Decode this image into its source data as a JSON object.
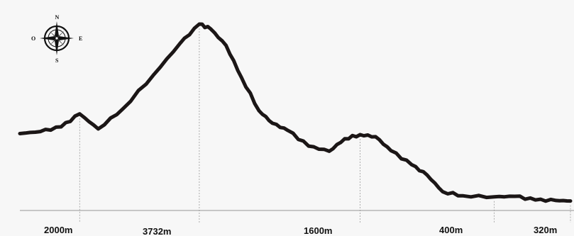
{
  "chart_data": {
    "type": "area",
    "title": "",
    "xlabel": "",
    "ylabel": "",
    "grid": false,
    "legend": "none",
    "line_color": "#1b1616",
    "guide_color": "#9a9a9a",
    "baseline_color": "#b5b5b5",
    "elevation_labels": [
      "2000m",
      "3732m",
      "1600m",
      "400m",
      "320m"
    ],
    "series": [
      {
        "values": [
          [
            0.0,
            1620
          ],
          [
            2.0,
            1660
          ],
          [
            4.0,
            1750
          ],
          [
            5.8,
            2000
          ],
          [
            7.6,
            1710
          ],
          [
            10.0,
            2100
          ],
          [
            13.0,
            2760
          ],
          [
            15.5,
            3350
          ],
          [
            17.4,
            3732
          ],
          [
            18.5,
            3640
          ],
          [
            20.0,
            3320
          ],
          [
            21.5,
            2700
          ],
          [
            23.2,
            2060
          ],
          [
            24.5,
            1820
          ],
          [
            26.0,
            1680
          ],
          [
            28.0,
            1380
          ],
          [
            30.0,
            1280
          ],
          [
            31.5,
            1520
          ],
          [
            33.0,
            1600
          ],
          [
            34.5,
            1560
          ],
          [
            36.0,
            1290
          ],
          [
            38.0,
            1020
          ],
          [
            39.5,
            820
          ],
          [
            41.0,
            500
          ],
          [
            43.0,
            420
          ],
          [
            46.0,
            400
          ],
          [
            48.0,
            410
          ],
          [
            50.0,
            340
          ],
          [
            52.0,
            330
          ],
          [
            53.4,
            320
          ]
        ]
      }
    ]
  },
  "compass": {
    "north": "N",
    "south": "S",
    "east": "E",
    "west": "O",
    "icon": "compass-rose-icon"
  }
}
